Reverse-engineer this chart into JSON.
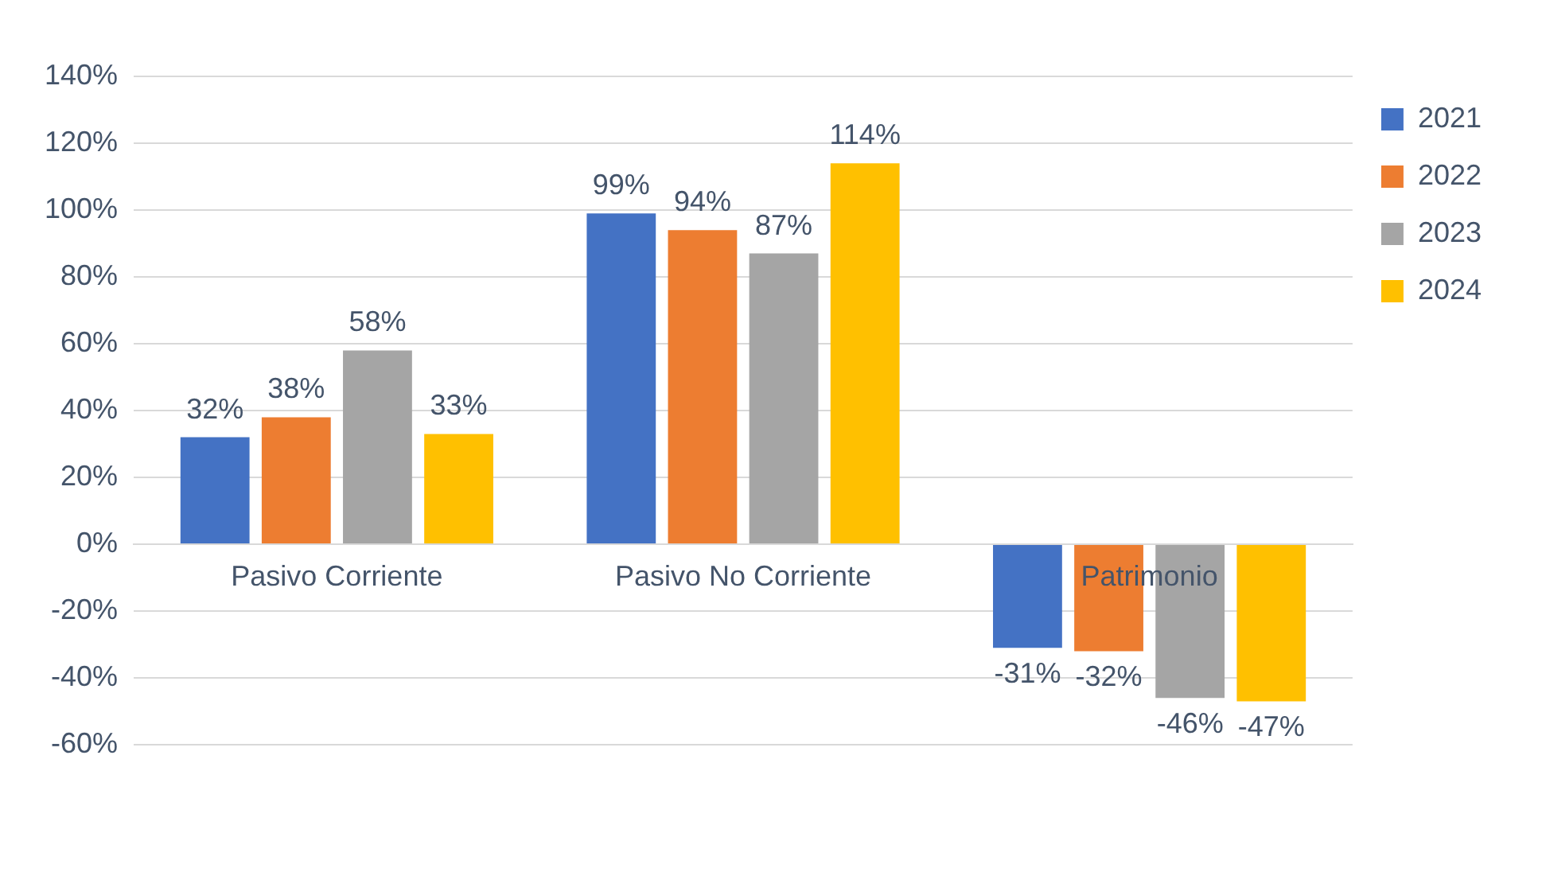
{
  "chart_data": {
    "type": "bar",
    "categories": [
      "Pasivo Corriente",
      "Pasivo No Corriente",
      "Patrimonio"
    ],
    "series": [
      {
        "name": "2021",
        "color": "#4472c4",
        "values": [
          32,
          99,
          -31
        ],
        "value_labels": [
          "32%",
          "99%",
          "-31%"
        ]
      },
      {
        "name": "2022",
        "color": "#ed7d31",
        "values": [
          38,
          94,
          -32
        ],
        "value_labels": [
          "38%",
          "94%",
          "-32%"
        ]
      },
      {
        "name": "2023",
        "color": "#a5a5a5",
        "values": [
          58,
          87,
          -46
        ],
        "value_labels": [
          "58%",
          "87%",
          "-46%"
        ]
      },
      {
        "name": "2024",
        "color": "#ffc000",
        "values": [
          33,
          114,
          -47
        ],
        "value_labels": [
          "33%",
          "114%",
          "-47%"
        ]
      }
    ],
    "ylim": [
      -60,
      140
    ],
    "yticks": [
      {
        "value": -60,
        "label": "-60%"
      },
      {
        "value": -40,
        "label": "-40%"
      },
      {
        "value": -20,
        "label": "-20%"
      },
      {
        "value": 0,
        "label": "0%"
      },
      {
        "value": 20,
        "label": "20%"
      },
      {
        "value": 40,
        "label": "40%"
      },
      {
        "value": 60,
        "label": "60%"
      },
      {
        "value": 80,
        "label": "80%"
      },
      {
        "value": 100,
        "label": "100%"
      },
      {
        "value": 120,
        "label": "120%"
      },
      {
        "value": 140,
        "label": "140%"
      }
    ],
    "grid": "y",
    "legend": "right"
  }
}
